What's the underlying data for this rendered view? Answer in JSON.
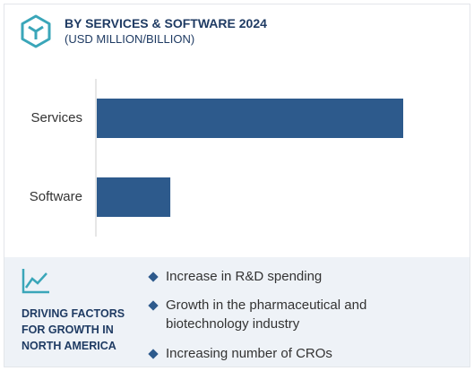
{
  "header": {
    "title": "BY SERVICES & SOFTWARE 2024",
    "subtitle": "(USD MILLION/BILLION)"
  },
  "chart_data": {
    "type": "bar",
    "orientation": "horizontal",
    "categories": [
      "Services",
      "Software"
    ],
    "values": [
      100,
      24
    ],
    "color": "#2d5a8c"
  },
  "driving_factors": {
    "title": "DRIVING FACTORS FOR GROWTH IN NORTH AMERICA",
    "items": [
      "Increase in R&D spending",
      "Growth in the pharmaceutical and biotechnology industry",
      "Increasing number of CROs"
    ]
  }
}
